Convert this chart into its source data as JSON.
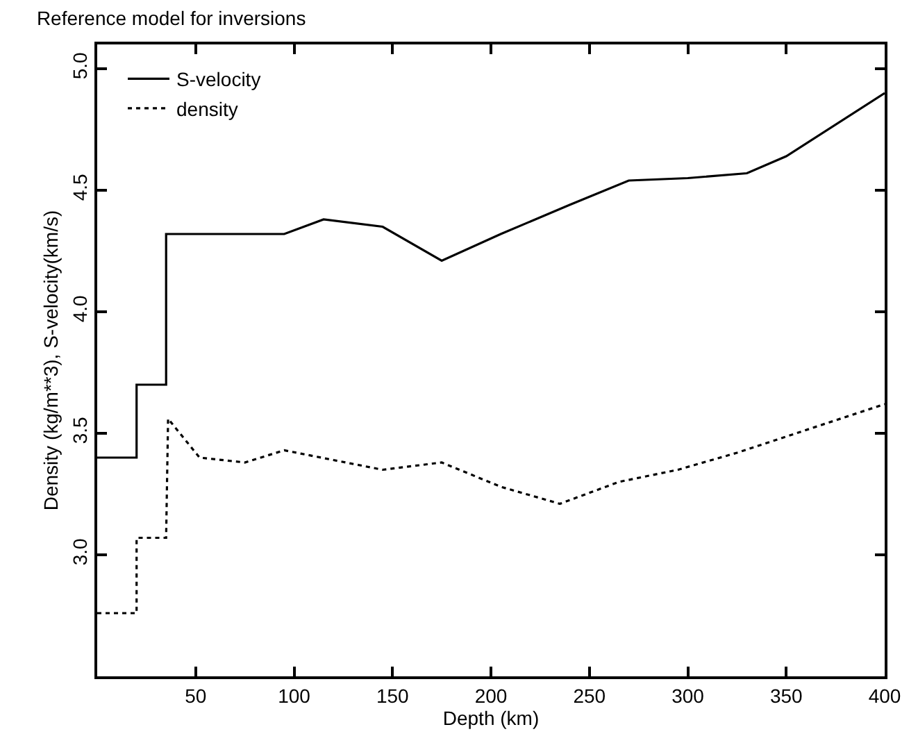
{
  "chart_data": {
    "type": "line",
    "title": "Reference model for inversions",
    "xlabel": "Depth (km)",
    "ylabel": "Density (kg/m**3), S-velocity(km/s)",
    "xlim": [
      0,
      400
    ],
    "xticks": [
      50,
      100,
      150,
      200,
      250,
      300,
      350,
      400
    ],
    "ylim": [
      2.5,
      5.1
    ],
    "yticks": [
      {
        "value": 3,
        "label": "3.0"
      },
      3.5,
      {
        "value": 4,
        "label": "4.0"
      },
      4.5,
      {
        "value": 5,
        "label": "5.0"
      }
    ],
    "legend": "top left",
    "marker": "none",
    "series": [
      {
        "name": "S-velocity",
        "color": "#000000",
        "line_style": "solid",
        "x": [
          0,
          20,
          20,
          35,
          35,
          95,
          115,
          145,
          175,
          205,
          240,
          270,
          300,
          330,
          350,
          400
        ],
        "values": [
          3.4,
          3.4,
          3.7,
          3.7,
          4.32,
          4.32,
          4.38,
          4.35,
          4.21,
          4.32,
          4.44,
          4.54,
          4.55,
          4.57,
          4.64,
          4.9
        ]
      },
      {
        "name": "density",
        "color": "#000000",
        "line_style": "dotted",
        "x": [
          0,
          20,
          20,
          35,
          36,
          52,
          75,
          95,
          120,
          145,
          175,
          205,
          235,
          265,
          295,
          325,
          400
        ],
        "values": [
          2.76,
          2.76,
          3.07,
          3.07,
          3.56,
          3.4,
          3.38,
          3.43,
          3.39,
          3.35,
          3.38,
          3.28,
          3.21,
          3.3,
          3.35,
          3.42,
          3.62
        ]
      }
    ]
  }
}
